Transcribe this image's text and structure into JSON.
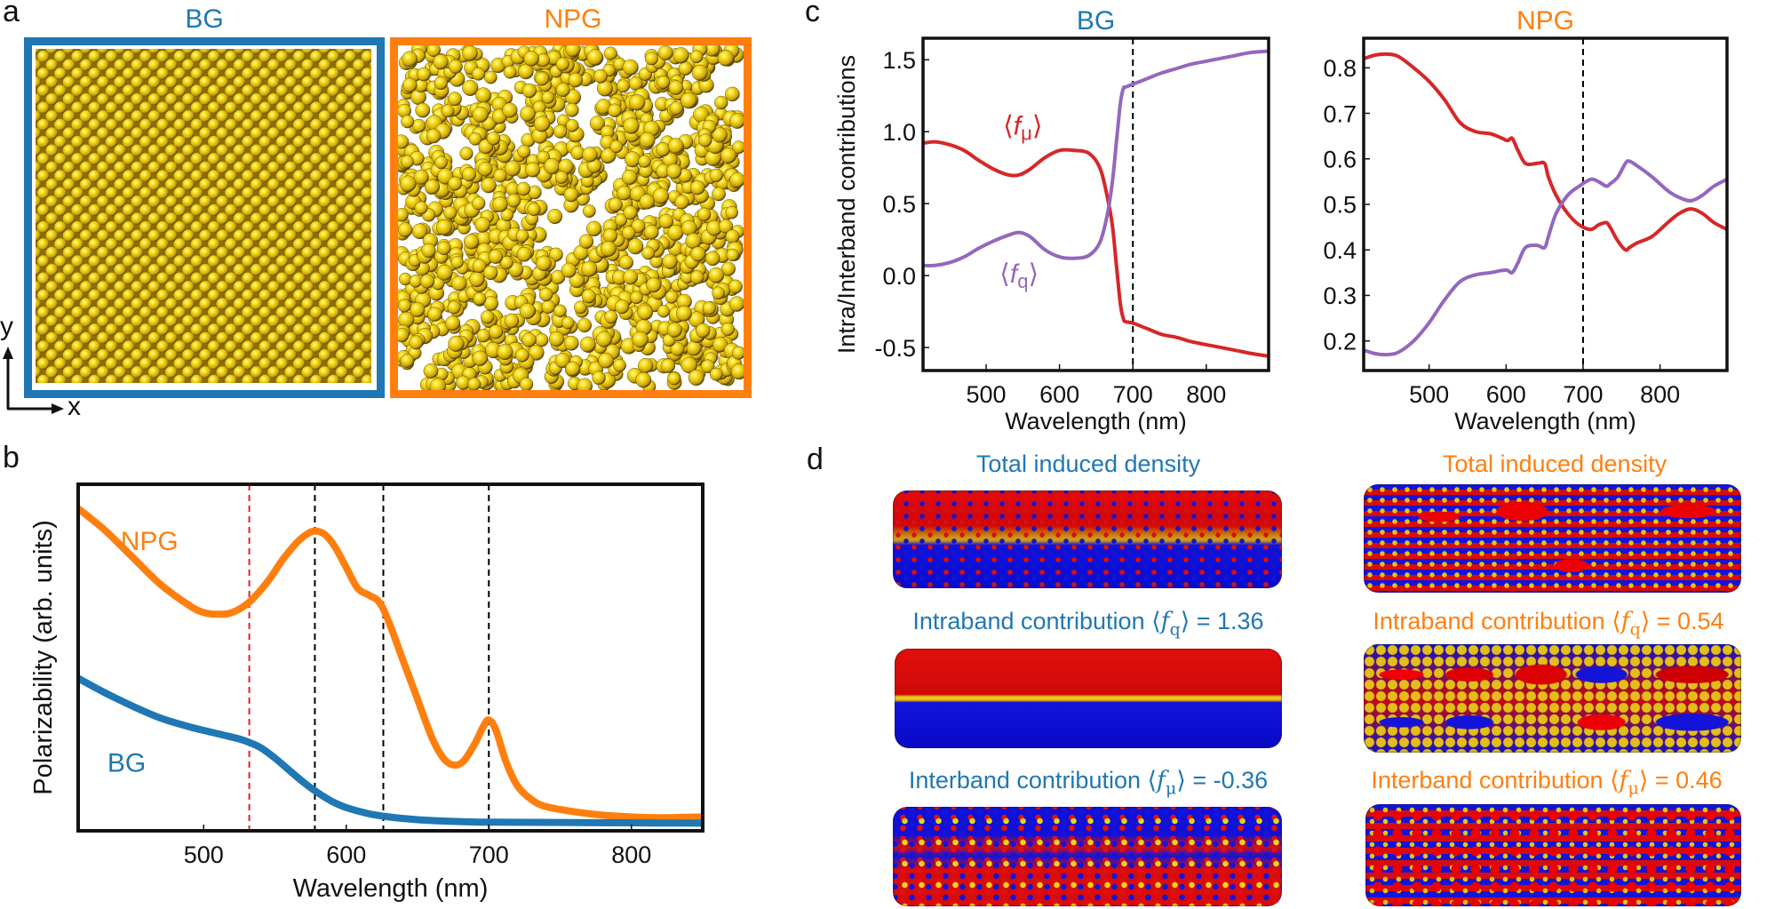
{
  "colors": {
    "bg": "#1f77b4",
    "npg": "#ff7f0e",
    "f_mu": "#d62728",
    "f_q": "#9467bd",
    "gold": "#f2cc0f",
    "density_positive": "#e00000",
    "density_negative": "#0a0ae0"
  },
  "panel_a": {
    "letter": "a",
    "bg_title": "BG",
    "npg_title": "NPG",
    "axis_y_label": "y",
    "axis_x_label": "x"
  },
  "panel_b": {
    "letter": "b"
  },
  "panel_c": {
    "letter": "c"
  },
  "panel_d": {
    "letter": "d",
    "bg": {
      "total_label": "Total induced density",
      "intra_prefix": "Intraband contribution ⟨",
      "intra_symbol": "f",
      "intra_sub": "q",
      "intra_suffix": "⟩ = 1.36",
      "inter_prefix": "Interband contribution ⟨",
      "inter_symbol": "f",
      "inter_sub": "μ",
      "inter_suffix": "⟩ = -0.36"
    },
    "npg": {
      "total_label": "Total induced density",
      "intra_prefix": "Intraband contribution ⟨",
      "intra_symbol": "f",
      "intra_sub": "q",
      "intra_suffix": "⟩ = 0.54",
      "inter_prefix": "Interband contribution ⟨",
      "inter_symbol": "f",
      "inter_sub": "μ",
      "inter_suffix": "⟩ = 0.46"
    }
  },
  "chart_data": [
    {
      "id": "b",
      "type": "line",
      "title": "",
      "xlabel": "Wavelength (nm)",
      "ylabel": "Polarizability (arb. units)",
      "xlim": [
        412,
        850
      ],
      "ylim": [
        0,
        1
      ],
      "xticks": [
        500,
        600,
        700,
        800
      ],
      "yticks": [],
      "grid": false,
      "vlines": [
        {
          "x": 532,
          "color": "#d62728",
          "style": "dashed"
        },
        {
          "x": 578,
          "color": "#000000",
          "style": "dashed"
        },
        {
          "x": 626,
          "color": "#000000",
          "style": "dashed"
        },
        {
          "x": 700,
          "color": "#000000",
          "style": "dashed"
        }
      ],
      "series": [
        {
          "name": "NPG",
          "color": "#ff7f0e",
          "label_pos": [
            462,
            0.81
          ],
          "x": [
            412,
            430,
            450,
            470,
            490,
            500,
            510,
            520,
            532,
            545,
            555,
            565,
            572,
            578,
            585,
            592,
            600,
            608,
            616,
            622,
            626,
            632,
            640,
            650,
            660,
            668,
            675,
            682,
            690,
            696,
            700,
            705,
            712,
            720,
            730,
            740,
            760,
            780,
            800,
            820,
            850
          ],
          "y": [
            0.93,
            0.87,
            0.79,
            0.71,
            0.65,
            0.63,
            0.625,
            0.63,
            0.66,
            0.72,
            0.78,
            0.83,
            0.855,
            0.865,
            0.855,
            0.82,
            0.76,
            0.7,
            0.68,
            0.665,
            0.64,
            0.58,
            0.49,
            0.38,
            0.27,
            0.21,
            0.19,
            0.2,
            0.25,
            0.3,
            0.32,
            0.29,
            0.2,
            0.13,
            0.09,
            0.07,
            0.055,
            0.045,
            0.04,
            0.038,
            0.04
          ]
        },
        {
          "name": "BG",
          "color": "#1f77b4",
          "label_pos": [
            446,
            0.17
          ],
          "x": [
            412,
            430,
            450,
            470,
            490,
            510,
            525,
            532,
            540,
            550,
            560,
            570,
            580,
            590,
            600,
            615,
            630,
            650,
            670,
            700,
            750,
            800,
            850
          ],
          "y": [
            0.44,
            0.4,
            0.36,
            0.325,
            0.3,
            0.28,
            0.265,
            0.255,
            0.24,
            0.21,
            0.175,
            0.14,
            0.11,
            0.085,
            0.067,
            0.05,
            0.04,
            0.032,
            0.028,
            0.025,
            0.024,
            0.023,
            0.022
          ]
        }
      ]
    },
    {
      "id": "c-bg",
      "type": "line",
      "title": "BG",
      "xlabel": "Wavelength (nm)",
      "ylabel": "Intra/Interband contributions",
      "xlim": [
        414,
        885
      ],
      "ylim": [
        -0.66,
        1.65
      ],
      "xticks": [
        500,
        600,
        700,
        800
      ],
      "yticks": [
        -0.5,
        0.0,
        0.5,
        1.0,
        1.5
      ],
      "ytick_labels": [
        "-0.5",
        "0.0",
        "0.5",
        "1.0",
        "1.5"
      ],
      "grid": false,
      "vlines": [
        {
          "x": 700,
          "color": "#000000",
          "style": "dashed"
        }
      ],
      "series": [
        {
          "name": "⟨fμ⟩",
          "color": "#d62728",
          "label_pos": [
            550,
            0.98
          ],
          "x": [
            414,
            430,
            450,
            470,
            490,
            510,
            530,
            545,
            560,
            580,
            600,
            620,
            640,
            655,
            665,
            672,
            678,
            683,
            687,
            690,
            700,
            720,
            740,
            760,
            780,
            800,
            820,
            840,
            860,
            885
          ],
          "y": [
            0.92,
            0.93,
            0.91,
            0.87,
            0.8,
            0.74,
            0.7,
            0.7,
            0.74,
            0.82,
            0.87,
            0.87,
            0.85,
            0.75,
            0.55,
            0.35,
            0.05,
            -0.2,
            -0.3,
            -0.32,
            -0.33,
            -0.37,
            -0.41,
            -0.43,
            -0.46,
            -0.48,
            -0.5,
            -0.52,
            -0.54,
            -0.56
          ]
        },
        {
          "name": "⟨fq⟩",
          "color": "#9467bd",
          "label_pos": [
            545,
            -0.05
          ],
          "x": [
            414,
            430,
            450,
            470,
            490,
            510,
            530,
            545,
            560,
            580,
            600,
            620,
            640,
            655,
            665,
            672,
            678,
            683,
            687,
            690,
            700,
            720,
            740,
            760,
            780,
            800,
            820,
            840,
            860,
            885
          ],
          "y": [
            0.07,
            0.07,
            0.09,
            0.13,
            0.19,
            0.24,
            0.28,
            0.3,
            0.27,
            0.18,
            0.13,
            0.12,
            0.14,
            0.23,
            0.42,
            0.65,
            0.95,
            1.2,
            1.3,
            1.31,
            1.33,
            1.37,
            1.41,
            1.44,
            1.47,
            1.49,
            1.51,
            1.53,
            1.55,
            1.56
          ]
        }
      ]
    },
    {
      "id": "c-npg",
      "type": "line",
      "title": "NPG",
      "xlabel": "Wavelength (nm)",
      "ylabel": "",
      "xlim": [
        415,
        887
      ],
      "ylim": [
        0.135,
        0.865
      ],
      "xticks": [
        500,
        600,
        700,
        800
      ],
      "yticks": [
        0.2,
        0.3,
        0.4,
        0.5,
        0.6,
        0.7,
        0.8
      ],
      "ytick_labels": [
        "0.2",
        "0.3",
        "0.4",
        "0.5",
        "0.6",
        "0.7",
        "0.8"
      ],
      "grid": false,
      "vlines": [
        {
          "x": 700,
          "color": "#000000",
          "style": "dashed"
        }
      ],
      "series": [
        {
          "name": "⟨fμ⟩",
          "color": "#d62728",
          "x": [
            415,
            430,
            445,
            460,
            480,
            500,
            520,
            540,
            560,
            580,
            595,
            602,
            608,
            615,
            625,
            640,
            650,
            655,
            665,
            680,
            695,
            710,
            720,
            730,
            735,
            745,
            755,
            760,
            770,
            790,
            810,
            825,
            840,
            855,
            870,
            887
          ],
          "y": [
            0.82,
            0.828,
            0.83,
            0.825,
            0.8,
            0.77,
            0.73,
            0.68,
            0.66,
            0.655,
            0.645,
            0.64,
            0.645,
            0.62,
            0.59,
            0.59,
            0.59,
            0.56,
            0.52,
            0.48,
            0.455,
            0.445,
            0.455,
            0.46,
            0.45,
            0.42,
            0.4,
            0.405,
            0.415,
            0.43,
            0.46,
            0.48,
            0.49,
            0.48,
            0.46,
            0.445
          ]
        },
        {
          "name": "⟨fq⟩",
          "color": "#9467bd",
          "x": [
            415,
            430,
            445,
            460,
            480,
            500,
            520,
            540,
            560,
            580,
            595,
            602,
            608,
            615,
            625,
            640,
            650,
            655,
            665,
            680,
            695,
            710,
            720,
            730,
            735,
            745,
            755,
            760,
            770,
            790,
            810,
            825,
            840,
            855,
            870,
            887
          ],
          "y": [
            0.18,
            0.172,
            0.17,
            0.175,
            0.2,
            0.24,
            0.29,
            0.33,
            0.345,
            0.35,
            0.355,
            0.355,
            0.35,
            0.37,
            0.405,
            0.41,
            0.405,
            0.43,
            0.48,
            0.52,
            0.54,
            0.555,
            0.55,
            0.54,
            0.545,
            0.56,
            0.59,
            0.595,
            0.585,
            0.56,
            0.53,
            0.515,
            0.508,
            0.52,
            0.54,
            0.555
          ]
        }
      ]
    }
  ]
}
